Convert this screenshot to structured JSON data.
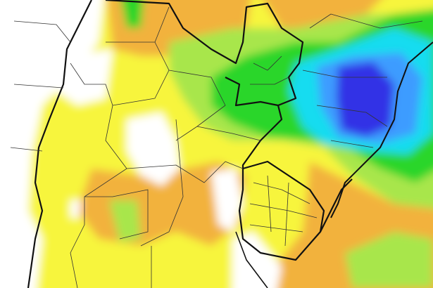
{
  "map": {
    "palette": {
      "white": "#ffffff",
      "yellow": "#f7f53c",
      "orange": "#f2b23c",
      "light_green": "#a8e64c",
      "green": "#2bd62b",
      "cyan": "#16dcf0",
      "blue": "#3c9cff",
      "dark_blue": "#3232e6",
      "border": "#111111"
    }
  }
}
